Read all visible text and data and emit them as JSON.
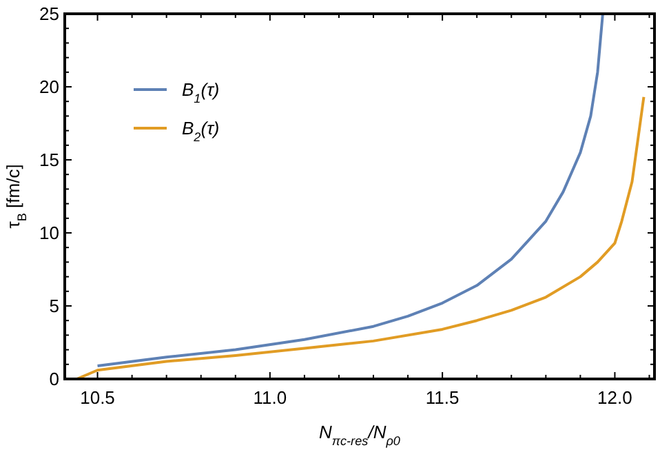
{
  "chart_data": {
    "type": "line",
    "xlabel": "N$_{πc-res}$/N$_{ρ0}$",
    "ylabel": "τ$_{B}$ [fm/c]",
    "xlim": [
      10.405,
      12.115
    ],
    "ylim": [
      0,
      25
    ],
    "xticks": [
      10.5,
      {
        "value": 11,
        "label": "11.0"
      },
      11.5,
      {
        "value": 12,
        "label": "12.0"
      }
    ],
    "yticks": [
      0,
      5,
      10,
      15,
      20,
      25
    ],
    "grid": false,
    "legend": "top left",
    "line_style": "solid",
    "series": [
      {
        "name": "B$_{1}$(τ)",
        "color": "#5e81b5",
        "x": [
          10.5,
          10.7,
          10.9,
          11.1,
          11.3,
          11.4,
          11.5,
          11.6,
          11.7,
          11.8,
          11.85,
          11.9,
          11.93,
          11.95,
          11.965
        ],
        "values": [
          0.9,
          1.5,
          2.0,
          2.7,
          3.6,
          4.3,
          5.2,
          6.4,
          8.2,
          10.8,
          12.8,
          15.5,
          18,
          21,
          25
        ]
      },
      {
        "name": "B$_{2}$(τ)",
        "color": "#e19c24",
        "x": [
          10.44,
          10.5,
          10.7,
          10.9,
          11.1,
          11.3,
          11.5,
          11.6,
          11.7,
          11.8,
          11.9,
          11.95,
          12.0,
          12.02,
          12.05,
          12.084
        ],
        "values": [
          0,
          0.6,
          1.2,
          1.6,
          2.1,
          2.6,
          3.4,
          4.0,
          4.7,
          5.6,
          7.0,
          8.0,
          9.3,
          10.8,
          13.5,
          19.3
        ]
      }
    ]
  }
}
